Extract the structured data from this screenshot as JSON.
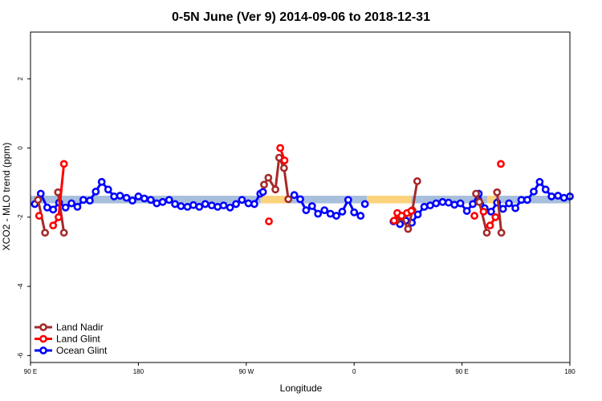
{
  "chart_data": {
    "type": "line",
    "title": "0-5N June (Ver 9)   2014-09-06 to 2018-12-31",
    "xlabel": "Longitude",
    "ylabel": "XCO2 - MLO trend (ppm)",
    "xlim": [
      0,
      1
    ],
    "ylim": [
      -6.2,
      3.35
    ],
    "x_ticks": [
      {
        "pos": 0.0,
        "label": "90 E"
      },
      {
        "pos": 0.2,
        "label": "180"
      },
      {
        "pos": 0.4,
        "label": "90 W"
      },
      {
        "pos": 0.6,
        "label": "0"
      },
      {
        "pos": 0.8,
        "label": "90 E"
      },
      {
        "pos": 1.0,
        "label": "180"
      }
    ],
    "y_ticks": [
      -6,
      -4,
      -2,
      0,
      2
    ],
    "grid": false,
    "legend_position": "bottom-left",
    "colors": {
      "land_nadir": "#a52a2a",
      "land_glint": "#ff0000",
      "ocean_glint": "#0000ff",
      "band_ocean": "#a7bfdc",
      "band_land": "#fcd27c"
    },
    "bands": [
      {
        "x": [
          0.0,
          0.427
        ],
        "y": [
          -1.6,
          -1.38
        ],
        "color": "#a7bfdc"
      },
      {
        "x": [
          0.427,
          0.478
        ],
        "y": [
          -1.6,
          -1.38
        ],
        "color": "#fcd27c"
      },
      {
        "x": [
          0.478,
          0.624
        ],
        "y": [
          -1.6,
          -1.38
        ],
        "color": "#a7bfdc"
      },
      {
        "x": [
          0.624,
          0.706
        ],
        "y": [
          -1.6,
          -1.38
        ],
        "color": "#fcd27c"
      },
      {
        "x": [
          0.706,
          0.847
        ],
        "y": [
          -1.6,
          -1.38
        ],
        "color": "#a7bfdc"
      },
      {
        "x": [
          0.847,
          0.862
        ],
        "y": [
          -1.6,
          -1.38
        ],
        "color": "#fcd27c"
      },
      {
        "x": [
          0.862,
          1.0
        ],
        "y": [
          -1.6,
          -1.38
        ],
        "color": "#a7bfdc"
      }
    ],
    "series": [
      {
        "name": "Ocean Glint",
        "color": "#0000ff",
        "segments": [
          {
            "x": [
              0.008,
              0.019,
              0.031,
              0.042,
              0.053,
              0.065,
              0.076,
              0.087,
              0.098,
              0.11,
              0.121,
              0.132,
              0.144,
              0.155,
              0.166,
              0.178,
              0.189,
              0.2,
              0.211,
              0.223,
              0.234,
              0.245,
              0.257,
              0.268,
              0.279,
              0.291,
              0.302,
              0.313,
              0.324,
              0.336,
              0.347,
              0.358,
              0.37,
              0.381,
              0.392,
              0.404,
              0.415,
              0.426,
              0.431
            ],
            "y": [
              -1.62,
              -1.32,
              -1.72,
              -1.78,
              -1.58,
              -1.72,
              -1.6,
              -1.7,
              -1.5,
              -1.52,
              -1.26,
              -0.98,
              -1.2,
              -1.4,
              -1.38,
              -1.44,
              -1.52,
              -1.4,
              -1.46,
              -1.5,
              -1.6,
              -1.56,
              -1.5,
              -1.62,
              -1.68,
              -1.7,
              -1.65,
              -1.7,
              -1.62,
              -1.66,
              -1.7,
              -1.66,
              -1.72,
              -1.62,
              -1.5,
              -1.6,
              -1.62,
              -1.32,
              -1.27
            ]
          },
          {
            "x": [
              0.489,
              0.5,
              0.511,
              0.522,
              0.533,
              0.545,
              0.556,
              0.567,
              0.578,
              0.589,
              0.6,
              0.612
            ],
            "y": [
              -1.36,
              -1.48,
              -1.8,
              -1.68,
              -1.9,
              -1.8,
              -1.9,
              -1.96,
              -1.84,
              -1.5,
              -1.86,
              -1.96
            ]
          },
          {
            "x": [
              0.62
            ],
            "y": [
              -1.62
            ]
          },
          {
            "x": [
              0.673,
              0.685,
              0.696,
              0.707,
              0.718,
              0.73,
              0.741,
              0.752,
              0.764,
              0.775,
              0.786,
              0.797,
              0.809,
              0.82,
              0.831,
              0.842,
              0.854,
              0.865,
              0.876,
              0.887,
              0.899,
              0.91,
              0.921,
              0.933,
              0.944,
              0.955,
              0.966,
              0.978,
              0.989,
              1.0
            ],
            "y": [
              -2.12,
              -2.2,
              -2.1,
              -2.16,
              -1.92,
              -1.7,
              -1.66,
              -1.6,
              -1.56,
              -1.58,
              -1.64,
              -1.6,
              -1.82,
              -1.62,
              -1.32,
              -1.74,
              -1.84,
              -1.58,
              -1.76,
              -1.6,
              -1.74,
              -1.5,
              -1.5,
              -1.26,
              -0.98,
              -1.2,
              -1.4,
              -1.38,
              -1.44,
              -1.4
            ]
          }
        ]
      },
      {
        "name": "Land Nadir",
        "color": "#a52a2a",
        "segments": [
          {
            "x": [
              0.014,
              0.027
            ],
            "y": [
              -1.5,
              -2.45
            ]
          },
          {
            "x": [
              0.051,
              0.062
            ],
            "y": [
              -1.28,
              -2.45
            ]
          },
          {
            "x": [
              0.433,
              0.441,
              0.454,
              0.461,
              0.47,
              0.478
            ],
            "y": [
              -1.06,
              -0.86,
              -1.2,
              -0.28,
              -0.58,
              -1.48
            ]
          },
          {
            "x": [
              0.678,
              0.688,
              0.7,
              0.708,
              0.717
            ],
            "y": [
              -2.1,
              -2.0,
              -2.34,
              -1.8,
              -0.96
            ]
          },
          {
            "x": [
              0.826,
              0.832,
              0.846
            ],
            "y": [
              -1.32,
              -1.56,
              -2.45
            ]
          },
          {
            "x": [
              0.865,
              0.873
            ],
            "y": [
              -1.28,
              -2.45
            ]
          }
        ]
      },
      {
        "name": "Land Glint",
        "color": "#ff0000",
        "segments": [
          {
            "x": [
              0.016
            ],
            "y": [
              -1.96
            ]
          },
          {
            "x": [
              0.042,
              0.052,
              0.062
            ],
            "y": [
              -2.24,
              -2.0,
              -0.46
            ]
          },
          {
            "x": [
              0.442
            ],
            "y": [
              -2.12
            ]
          },
          {
            "x": [
              0.463,
              0.471
            ],
            "y": [
              0.0,
              -0.36
            ]
          },
          {
            "x": [
              0.674,
              0.68
            ],
            "y": [
              -2.1,
              -1.88
            ]
          },
          {
            "x": [
              0.688,
              0.698
            ],
            "y": [
              -1.96,
              -1.88
            ]
          },
          {
            "x": [
              0.706
            ],
            "y": [
              -1.82
            ]
          },
          {
            "x": [
              0.823
            ],
            "y": [
              -1.96
            ]
          },
          {
            "x": [
              0.84
            ],
            "y": [
              -1.84
            ]
          },
          {
            "x": [
              0.852,
              0.862
            ],
            "y": [
              -2.24,
              -2.0
            ]
          },
          {
            "x": [
              0.872
            ],
            "y": [
              -0.46
            ]
          }
        ]
      }
    ],
    "legend_order": [
      "Land Nadir",
      "Land Glint",
      "Ocean Glint"
    ]
  }
}
